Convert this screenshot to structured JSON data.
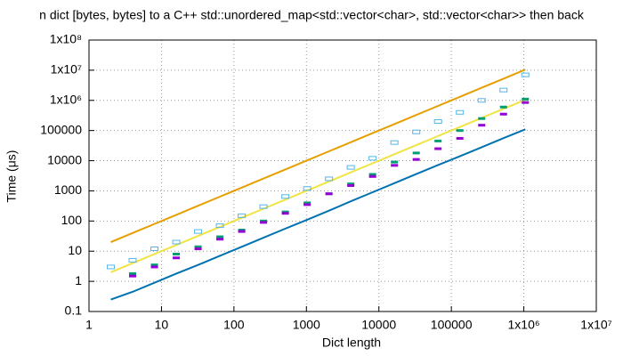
{
  "chart_data": {
    "type": "line",
    "title": "n dict [bytes, bytes] to a C++ std::unordered_map<std::vector<char>, std::vector<char>> then back",
    "xlabel": "Dict length",
    "ylabel": "Time (μs)",
    "xscale": "log",
    "yscale": "log",
    "grid": true,
    "xlim": [
      1,
      10000000
    ],
    "xticks": [
      1,
      10,
      100,
      1000,
      10000,
      100000,
      {
        "value": 1000000,
        "label": "1x10⁶"
      },
      {
        "value": 10000000,
        "label": "1x10⁷"
      }
    ],
    "ylim": [
      0.1,
      100000000
    ],
    "yticks": [
      0.1,
      1,
      10,
      100,
      1000,
      10000,
      100000,
      {
        "value": 1000000,
        "label": "1x10⁶"
      },
      {
        "value": 10000000,
        "label": "1x10⁷"
      },
      {
        "value": 100000000,
        "label": "1x10⁸"
      }
    ],
    "x": [
      2,
      4,
      8,
      16,
      32,
      64,
      128,
      256,
      512,
      1024,
      2048,
      4096,
      8192,
      16384,
      32768,
      65536,
      131072,
      262144,
      524288,
      1048576
    ],
    "series": [
      {
        "style": "line",
        "color": "#e69f00",
        "values": [
          20,
          40,
          80,
          160,
          320,
          640,
          1280,
          2560,
          5120,
          10240,
          20480,
          40960,
          81920,
          163840,
          327680,
          655360,
          1310720,
          2621440,
          5242880,
          10485760
        ]
      },
      {
        "style": "line",
        "color": "#f0e442",
        "values": [
          2,
          4,
          8,
          16,
          32,
          64,
          128,
          256,
          512,
          1024,
          2048,
          4096,
          8192,
          16384,
          32768,
          65536,
          131072,
          262144,
          524288,
          1048576
        ]
      },
      {
        "style": "line",
        "color": "#0072b2",
        "values": [
          0.25,
          0.45,
          0.9,
          1.8,
          3.5,
          7,
          14,
          28,
          56,
          110,
          220,
          450,
          900,
          1800,
          3600,
          7200,
          14000,
          28000,
          56000,
          110000
        ]
      },
      {
        "style": "box",
        "color": "#56b4e9",
        "values": [
          3,
          5,
          12,
          20,
          45,
          70,
          150,
          300,
          650,
          1200,
          2500,
          6000,
          12000,
          40000,
          90000,
          200000,
          400000,
          1000000,
          2200000,
          7000000
        ]
      },
      {
        "style": "dash",
        "color": "#009e73",
        "values": [
          null,
          1.8,
          3.5,
          8,
          14,
          30,
          50,
          100,
          200,
          400,
          800,
          1700,
          3500,
          9000,
          18000,
          45000,
          100000,
          250000,
          600000,
          1100000
        ]
      },
      {
        "style": "dash",
        "color": "#9400d3",
        "values": [
          null,
          1.5,
          3,
          6,
          12,
          25,
          45,
          90,
          180,
          350,
          800,
          1500,
          3000,
          7000,
          11000,
          25000,
          55000,
          150000,
          350000,
          850000
        ]
      }
    ]
  }
}
